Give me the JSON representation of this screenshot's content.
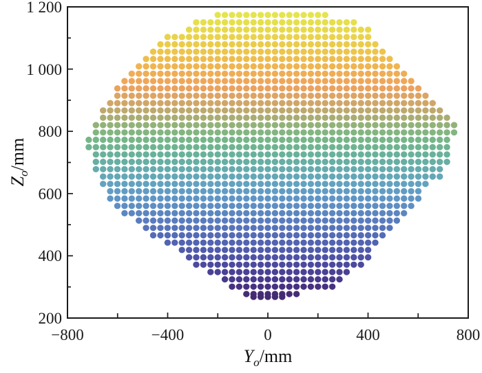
{
  "chart_data": {
    "type": "scatter",
    "description": "Dense grid point cloud (workspace cross-section) colored by Z height",
    "xlabel": {
      "variable": "Y",
      "subscript": "o",
      "unit": "/mm"
    },
    "ylabel": {
      "variable": "Z",
      "subscript": "o",
      "unit": "/mm"
    },
    "xlim": [
      -800,
      800
    ],
    "ylim": [
      200,
      1200
    ],
    "x_major_ticks": [
      {
        "value": -800,
        "label": "−800"
      },
      {
        "value": -400,
        "label": "−400"
      },
      {
        "value": 0,
        "label": "0"
      },
      {
        "value": 400,
        "label": "400"
      },
      {
        "value": 800,
        "label": "800"
      }
    ],
    "x_minor_ticks": [
      -600,
      -200,
      200,
      600
    ],
    "y_major_ticks": [
      {
        "value": 200,
        "label": "200"
      },
      {
        "value": 400,
        "label": "400"
      },
      {
        "value": 600,
        "label": "600"
      },
      {
        "value": 800,
        "label": "800"
      },
      {
        "value": 1000,
        "label": "1 000"
      },
      {
        "value": 1200,
        "label": "1 200"
      }
    ],
    "y_minor_ticks": [
      300,
      500,
      700,
      900,
      1100
    ],
    "grid": {
      "row_step_mm": 23.6,
      "col_step_mm": 28.6,
      "z_top": 1174,
      "z_bottom": 277
    },
    "boundary_left": [
      [
        1174,
        -212
      ],
      [
        1150,
        -288
      ],
      [
        1126,
        -337
      ],
      [
        1102,
        -412
      ],
      [
        1056,
        -460
      ],
      [
        1010,
        -522
      ],
      [
        962,
        -587
      ],
      [
        912,
        -625
      ],
      [
        866,
        -664
      ],
      [
        820,
        -698
      ],
      [
        768,
        -718
      ],
      [
        736,
        -718
      ],
      [
        668,
        -695
      ],
      [
        592,
        -642
      ],
      [
        536,
        -573
      ],
      [
        482,
        -490
      ],
      [
        436,
        -408
      ],
      [
        408,
        -348
      ],
      [
        370,
        -285
      ],
      [
        336,
        -220
      ],
      [
        303,
        -158
      ],
      [
        277,
        -106
      ]
    ],
    "boundary_right": [
      [
        1174,
        237
      ],
      [
        1150,
        362
      ],
      [
        1126,
        416
      ],
      [
        1068,
        449
      ],
      [
        1022,
        521
      ],
      [
        977,
        567
      ],
      [
        933,
        617
      ],
      [
        889,
        663
      ],
      [
        845,
        727
      ],
      [
        828,
        764
      ],
      [
        790,
        745
      ],
      [
        746,
        740
      ],
      [
        701,
        726
      ],
      [
        657,
        698
      ],
      [
        642,
        649
      ],
      [
        602,
        616
      ],
      [
        558,
        580
      ],
      [
        514,
        533
      ],
      [
        470,
        478
      ],
      [
        425,
        434
      ],
      [
        381,
        388
      ],
      [
        339,
        327
      ],
      [
        315,
        291
      ],
      [
        293,
        242
      ],
      [
        277,
        141
      ]
    ],
    "extra_segments": [
      {
        "z": 268,
        "y_range": [
          -58,
          2
        ]
      },
      {
        "z": 268,
        "y_range": [
          11,
          72
        ]
      }
    ],
    "color_stops": [
      [
        1175,
        "#e5e44e"
      ],
      [
        1125,
        "#e8d94b"
      ],
      [
        1075,
        "#ebcb4a"
      ],
      [
        1025,
        "#eeba4e"
      ],
      [
        985,
        "#efad55"
      ],
      [
        945,
        "#eda25d"
      ],
      [
        900,
        "#d7a566"
      ],
      [
        855,
        "#b4ab70"
      ],
      [
        812,
        "#8cb47c"
      ],
      [
        770,
        "#74b689"
      ],
      [
        725,
        "#68b29a"
      ],
      [
        680,
        "#66abac"
      ],
      [
        635,
        "#63a3bf"
      ],
      [
        592,
        "#6098c6"
      ],
      [
        548,
        "#5d8ac2"
      ],
      [
        505,
        "#5979bc"
      ],
      [
        460,
        "#5469b5"
      ],
      [
        417,
        "#505aac"
      ],
      [
        373,
        "#4c4b9f"
      ],
      [
        329,
        "#483a8e"
      ],
      [
        295,
        "#46307e"
      ],
      [
        262,
        "#442a6e"
      ]
    ],
    "axis_color": "#1a1a1a",
    "background_color": "#ffffff",
    "legend": "none",
    "grid_lines": "off"
  }
}
